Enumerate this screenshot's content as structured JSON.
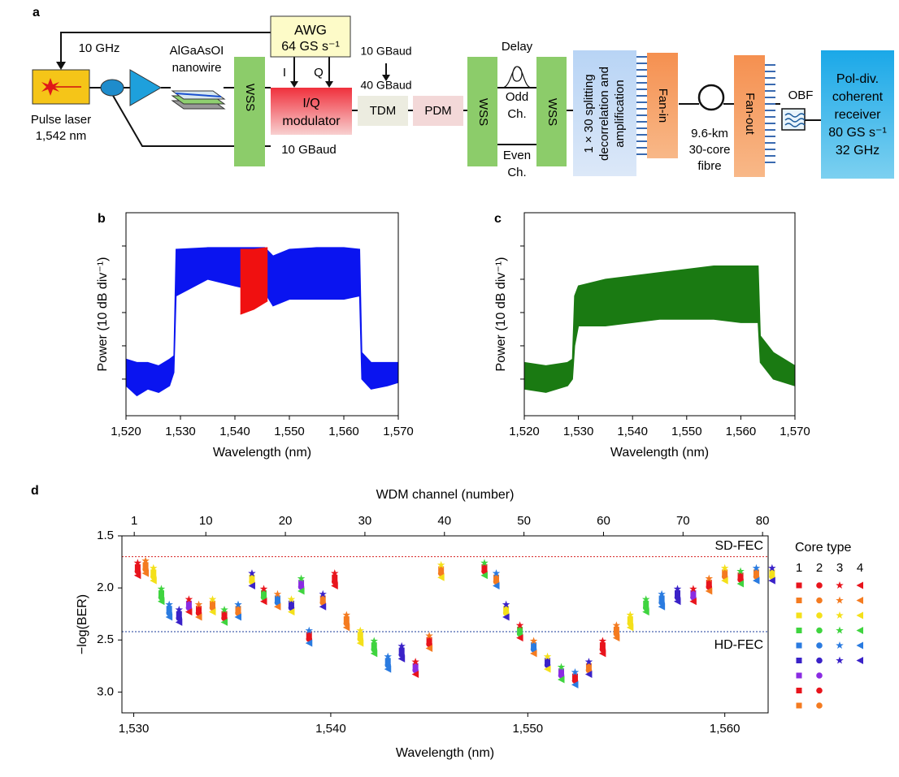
{
  "diagram": {
    "panel_label": "a",
    "clock": "10 GHz",
    "laser": [
      "Pulse laser",
      "1,542 nm"
    ],
    "chip": [
      "AlGaAsOI",
      "nanowire"
    ],
    "awg": [
      "AWG",
      "64 GS s⁻¹"
    ],
    "iq_inputs": [
      "I",
      "Q"
    ],
    "modulator": [
      "I/Q",
      "modulator"
    ],
    "modulator_rate": "10 GBaud",
    "tdm_rates": [
      "10 GBaud",
      "40 GBaud"
    ],
    "tdm": "TDM",
    "pdm": "PDM",
    "wss": [
      "WSS",
      "WSS",
      "WSS"
    ],
    "delay": "Delay",
    "odd": [
      "Odd",
      "Ch."
    ],
    "even": [
      "Even",
      "Ch."
    ],
    "splitter": [
      "1 × 30 splitting",
      "decorrelation and",
      "amplification"
    ],
    "fan_in": "Fan-in",
    "fibre": [
      "9.6-km",
      "30-core",
      "fibre"
    ],
    "fan_out": "Fan-out",
    "obf": "OBF",
    "receiver": [
      "Pol-div.",
      "coherent",
      "receiver",
      "80 GS s⁻¹",
      "32 GHz"
    ]
  },
  "chart_data": [
    {
      "type": "spectrum",
      "panel_label": "b",
      "x_label": "Wavelength (nm)",
      "y_label": "Power (10 dB div⁻¹)",
      "xlim": [
        1520,
        1570
      ],
      "xticks": [
        {
          "value": 1520,
          "label": "1,520"
        },
        {
          "value": 1530,
          "label": "1,530"
        },
        {
          "value": 1540,
          "label": "1,540"
        },
        {
          "value": 1550,
          "label": "1,550"
        },
        {
          "value": 1560,
          "label": "1,560"
        },
        {
          "value": 1570,
          "label": "1,570"
        }
      ],
      "ylim": [
        -11,
        50
      ],
      "yticks": [
        0,
        10,
        20,
        30,
        40
      ],
      "series": [
        {
          "color": "#0a14f0",
          "x": [
            1520,
            1522,
            1524,
            1526,
            1528,
            1528.8,
            1529.2,
            1535,
            1540,
            1545.5,
            1547,
            1550,
            1555,
            1560,
            1562.9,
            1563.3,
            1565,
            1568,
            1570
          ],
          "upper": [
            6,
            5,
            5,
            4,
            6,
            7,
            39,
            39.5,
            39.5,
            39.5,
            37,
            39,
            39.5,
            39.5,
            39,
            8,
            5,
            5,
            5
          ],
          "lower": [
            -2,
            -5,
            -3,
            -4,
            -2,
            2,
            25,
            30,
            28,
            26,
            22,
            24,
            24,
            24,
            25,
            0,
            -3,
            -2,
            -1
          ]
        },
        {
          "color": "#f01010",
          "x": [
            1541,
            1543.5,
            1546
          ],
          "upper": [
            39,
            39,
            39.5
          ],
          "lower": [
            19.5,
            21,
            23.5
          ]
        }
      ]
    },
    {
      "type": "spectrum",
      "panel_label": "c",
      "x_label": "Wavelength (nm)",
      "y_label": "Power (10 dB div⁻¹)",
      "xlim": [
        1520,
        1570
      ],
      "xticks": [
        {
          "value": 1520,
          "label": "1,520"
        },
        {
          "value": 1530,
          "label": "1,530"
        },
        {
          "value": 1540,
          "label": "1,540"
        },
        {
          "value": 1550,
          "label": "1,550"
        },
        {
          "value": 1560,
          "label": "1,560"
        },
        {
          "value": 1570,
          "label": "1,570"
        }
      ],
      "ylim": [
        -11,
        50
      ],
      "yticks": [
        0,
        10,
        20,
        30,
        40
      ],
      "series": [
        {
          "color": "#1a7a12",
          "x": [
            1520,
            1524,
            1528,
            1528.9,
            1529.3,
            1530,
            1535,
            1540,
            1545,
            1550,
            1555,
            1560,
            1563.2,
            1563.6,
            1566,
            1570
          ],
          "upper": [
            5,
            4,
            5,
            6,
            25,
            28,
            30,
            31,
            32,
            33,
            34,
            34,
            34,
            13,
            8,
            4
          ],
          "lower": [
            -3,
            -4,
            -2,
            0,
            10,
            16,
            16,
            17,
            18,
            18,
            18,
            17,
            17,
            5,
            0,
            -2
          ]
        }
      ]
    },
    {
      "type": "scatter",
      "panel_label": "d",
      "x_label": "Wavelength (nm)",
      "x2_label": "WDM channel (number)",
      "y_label": "−log(BER)",
      "legend_title": "Core type",
      "xlim": [
        1529.4,
        1562.2
      ],
      "xticks": [
        {
          "value": 1530,
          "label": "1,530"
        },
        {
          "value": 1540,
          "label": "1,540"
        },
        {
          "value": 1550,
          "label": "1,550"
        },
        {
          "value": 1560,
          "label": "1,560"
        }
      ],
      "x2lim": [
        -0.55,
        80.7
      ],
      "x2ticks": [
        1,
        10,
        20,
        30,
        40,
        50,
        60,
        70,
        80
      ],
      "ylim": [
        1.5,
        3.2
      ],
      "y_reversed": true,
      "yticks": [
        {
          "value": 1.5,
          "label": "1.5"
        },
        {
          "value": 2.0,
          "label": "2.0"
        },
        {
          "value": 2.5,
          "label": "2.5"
        },
        {
          "value": 3.0,
          "label": "3.0"
        }
      ],
      "thresholds": [
        {
          "label": "SD-FEC",
          "value": 1.7,
          "color": "#d62020"
        },
        {
          "label": "HD-FEC",
          "value": 2.42,
          "color": "#1a3a99"
        }
      ],
      "x": [
        1530.2,
        1530.6,
        1531.0,
        1531.4,
        1531.8,
        1532.3,
        1532.8,
        1533.3,
        1534.0,
        1534.6,
        1535.3,
        1536.0,
        1536.6,
        1537.3,
        1538.0,
        1538.5,
        1538.9,
        1539.6,
        1540.2,
        1540.8,
        1541.5,
        1542.2,
        1542.9,
        1543.6,
        1544.3,
        1545.0,
        1545.6,
        1547.8,
        1548.4,
        1548.9,
        1549.6,
        1550.3,
        1551.0,
        1551.7,
        1552.4,
        1553.1,
        1553.8,
        1554.5,
        1555.2,
        1556.0,
        1556.8,
        1557.6,
        1558.4,
        1559.2,
        1560.0,
        1560.8,
        1561.6,
        1562.4
      ],
      "series": [
        {
          "name": "1",
          "marker": "square",
          "colors": [
            "#e8141c",
            "#f47b20",
            "#f4e01a",
            "#3fd43f",
            "#2a7be0",
            "#3a22c8",
            "#8a2be2",
            "#e8141c",
            "#f47b20"
          ],
          "values": [
            1.8,
            1.78,
            1.85,
            2.05,
            2.2,
            2.25,
            2.15,
            2.2,
            2.15,
            2.25,
            2.2,
            1.9,
            2.05,
            2.1,
            2.15,
            1.95,
            2.45,
            2.1,
            1.9,
            2.3,
            2.45,
            2.55,
            2.7,
            2.6,
            2.75,
            2.5,
            1.82,
            1.8,
            1.9,
            2.2,
            2.4,
            2.55,
            2.7,
            2.8,
            2.85,
            2.75,
            2.55,
            2.4,
            2.3,
            2.15,
            2.1,
            2.05,
            2.05,
            1.95,
            1.85,
            1.88,
            1.85,
            1.85
          ]
        },
        {
          "name": "2",
          "marker": "circle",
          "colors": [
            "#e8141c",
            "#f47b20",
            "#f4e01a",
            "#3fd43f",
            "#2a7be0",
            "#3a22c8",
            "#8a2be2",
            "#e8141c",
            "#f47b20"
          ],
          "values": [
            1.84,
            1.82,
            1.89,
            2.09,
            2.24,
            2.29,
            2.19,
            2.24,
            2.19,
            2.29,
            2.24,
            1.94,
            2.09,
            2.14,
            2.19,
            1.99,
            2.49,
            2.14,
            1.94,
            2.34,
            2.49,
            2.59,
            2.74,
            2.64,
            2.79,
            2.54,
            1.86,
            1.84,
            1.94,
            2.24,
            2.44,
            2.59,
            2.74,
            2.84,
            2.89,
            2.79,
            2.59,
            2.44,
            2.34,
            2.19,
            2.14,
            2.09,
            2.09,
            1.99,
            1.89,
            1.92,
            1.89,
            1.89
          ]
        },
        {
          "name": "3",
          "marker": "star",
          "colors": [
            "#e8141c",
            "#f47b20",
            "#f4e01a",
            "#3fd43f",
            "#2a7be0",
            "#3a22c8"
          ],
          "values": [
            1.76,
            1.74,
            1.81,
            2.01,
            2.16,
            2.21,
            2.11,
            2.16,
            2.11,
            2.21,
            2.16,
            1.86,
            2.01,
            2.06,
            2.11,
            1.91,
            2.41,
            2.06,
            1.86,
            2.26,
            2.41,
            2.51,
            2.66,
            2.56,
            2.71,
            2.46,
            1.78,
            1.76,
            1.86,
            2.16,
            2.36,
            2.51,
            2.66,
            2.76,
            2.81,
            2.71,
            2.51,
            2.36,
            2.26,
            2.11,
            2.06,
            2.01,
            2.01,
            1.91,
            1.81,
            1.84,
            1.81,
            1.81
          ]
        },
        {
          "name": "4",
          "marker": "triangle",
          "colors": [
            "#e8141c",
            "#f47b20",
            "#f4e01a",
            "#3fd43f",
            "#2a7be0",
            "#3a22c8"
          ],
          "values": [
            1.88,
            1.86,
            1.93,
            2.13,
            2.28,
            2.33,
            2.23,
            2.28,
            2.23,
            2.33,
            2.28,
            1.98,
            2.13,
            2.18,
            2.23,
            2.03,
            2.53,
            2.18,
            1.98,
            2.38,
            2.53,
            2.63,
            2.78,
            2.68,
            2.83,
            2.58,
            1.9,
            1.88,
            1.98,
            2.28,
            2.48,
            2.63,
            2.78,
            2.88,
            2.93,
            2.83,
            2.63,
            2.48,
            2.38,
            2.23,
            2.18,
            2.13,
            2.13,
            2.03,
            1.93,
            1.96,
            1.93,
            1.93
          ]
        }
      ]
    }
  ]
}
